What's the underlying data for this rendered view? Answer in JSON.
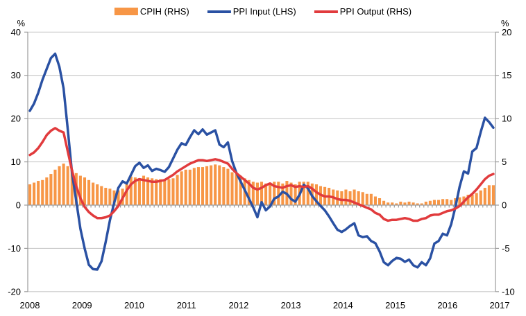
{
  "legend": {
    "items": [
      {
        "label": "CPIH (RHS)",
        "marker": "bar",
        "color": "#F79646"
      },
      {
        "label": "PPI Input (LHS)",
        "marker": "line",
        "color": "#2A51A3"
      },
      {
        "label": "PPI Output (RHS)",
        "marker": "line",
        "color": "#E13B3D"
      }
    ]
  },
  "chart_data": {
    "type": "combo-bar-line",
    "x_unit": "monthly",
    "x_start": "2008-01",
    "x_end": "2017-03",
    "grid": "horizontal-only",
    "legend_position": "top-center",
    "left_axis": {
      "label": "%",
      "ticks": [
        40,
        30,
        20,
        10,
        0,
        -10,
        -20
      ],
      "range": [
        -20,
        40
      ]
    },
    "right_axis": {
      "label": "%",
      "ticks": [
        20,
        15,
        10,
        5,
        0,
        -5,
        -10
      ],
      "range": [
        -10,
        20
      ]
    },
    "year_labels": [
      "2008",
      "2009",
      "2010",
      "2011",
      "2012",
      "2013",
      "2014",
      "2015",
      "2016",
      "2017"
    ],
    "colors": {
      "grid": "#C9C9C9",
      "axis": "#9B9B9B",
      "text": "#000000"
    },
    "series": [
      {
        "name": "CPIH (RHS)",
        "type": "bar",
        "axis": "right",
        "color": "#F79646",
        "values": [
          2.4,
          2.6,
          2.8,
          2.9,
          3.2,
          3.6,
          4.1,
          4.5,
          4.8,
          4.5,
          4.1,
          3.7,
          3.4,
          3.2,
          2.9,
          2.6,
          2.4,
          2.2,
          2.0,
          1.9,
          1.7,
          1.7,
          1.9,
          2.4,
          3.3,
          3.2,
          3.1,
          3.4,
          3.2,
          3.1,
          3.0,
          3.0,
          2.9,
          3.0,
          3.1,
          3.5,
          3.9,
          4.1,
          4.1,
          4.3,
          4.4,
          4.4,
          4.5,
          4.6,
          4.7,
          4.6,
          4.4,
          4.2,
          3.8,
          3.6,
          3.4,
          3.1,
          2.9,
          2.7,
          2.6,
          2.7,
          2.5,
          2.6,
          2.7,
          2.7,
          2.5,
          2.8,
          2.6,
          2.4,
          2.7,
          2.7,
          2.7,
          2.5,
          2.4,
          2.2,
          2.1,
          2.0,
          1.8,
          1.7,
          1.6,
          1.8,
          1.6,
          1.8,
          1.6,
          1.5,
          1.3,
          1.3,
          1.0,
          0.8,
          0.5,
          0.3,
          0.3,
          0.2,
          0.4,
          0.3,
          0.4,
          0.3,
          0.2,
          0.2,
          0.4,
          0.5,
          0.6,
          0.6,
          0.7,
          0.7,
          0.6,
          0.8,
          0.9,
          1.0,
          1.2,
          1.2,
          1.4,
          1.7,
          2.0,
          2.3,
          2.3
        ]
      },
      {
        "name": "PPI Input (LHS)",
        "type": "line",
        "axis": "left",
        "color": "#2A51A3",
        "values": [
          21.8,
          23.5,
          26.0,
          29.0,
          31.5,
          34.0,
          35.0,
          32.0,
          27.0,
          17.5,
          7.5,
          1.0,
          -5.5,
          -10.0,
          -13.8,
          -14.8,
          -14.9,
          -13.0,
          -8.5,
          -3.5,
          0.5,
          4.0,
          5.5,
          5.0,
          7.0,
          9.0,
          9.8,
          8.6,
          9.2,
          7.9,
          8.4,
          8.1,
          7.7,
          8.8,
          10.8,
          12.8,
          14.3,
          13.9,
          15.7,
          17.3,
          16.4,
          17.5,
          16.3,
          16.8,
          17.3,
          14.0,
          13.4,
          14.5,
          10.2,
          7.5,
          5.5,
          3.5,
          1.5,
          -0.5,
          -2.8,
          0.7,
          -1.2,
          -0.3,
          1.5,
          2.0,
          3.1,
          2.6,
          1.4,
          0.8,
          2.4,
          4.7,
          3.9,
          2.1,
          0.9,
          -0.2,
          -1.2,
          -2.6,
          -4.2,
          -5.7,
          -6.2,
          -5.6,
          -4.8,
          -4.2,
          -7.0,
          -7.4,
          -7.2,
          -8.3,
          -8.8,
          -10.7,
          -13.2,
          -13.9,
          -12.9,
          -12.2,
          -12.4,
          -13.1,
          -12.6,
          -13.9,
          -14.4,
          -13.2,
          -13.9,
          -12.3,
          -8.9,
          -8.3,
          -6.6,
          -7.0,
          -4.4,
          -0.4,
          4.3,
          7.8,
          7.3,
          12.4,
          13.2,
          16.9,
          20.2,
          19.2,
          17.9
        ]
      },
      {
        "name": "PPI Output (RHS)",
        "type": "line",
        "axis": "right",
        "color": "#E13B3D",
        "values": [
          5.8,
          6.1,
          6.6,
          7.3,
          8.1,
          8.6,
          8.9,
          8.6,
          8.4,
          6.2,
          4.0,
          2.2,
          0.8,
          -0.2,
          -0.8,
          -1.2,
          -1.5,
          -1.5,
          -1.4,
          -1.2,
          -0.7,
          -0.1,
          0.8,
          1.7,
          2.4,
          2.8,
          3.0,
          2.9,
          2.8,
          2.7,
          2.7,
          2.8,
          2.9,
          3.2,
          3.5,
          3.9,
          4.2,
          4.5,
          4.8,
          5.0,
          5.2,
          5.2,
          5.1,
          5.2,
          5.3,
          5.2,
          5.0,
          4.8,
          4.2,
          3.7,
          3.3,
          2.9,
          2.5,
          2.0,
          1.8,
          2.0,
          2.3,
          2.5,
          2.2,
          2.1,
          2.0,
          2.2,
          2.3,
          2.1,
          2.2,
          2.1,
          2.2,
          1.9,
          1.5,
          1.2,
          1.0,
          1.0,
          0.9,
          0.7,
          0.6,
          0.6,
          0.5,
          0.3,
          0.1,
          -0.1,
          -0.3,
          -0.5,
          -0.9,
          -1.1,
          -1.6,
          -1.8,
          -1.7,
          -1.7,
          -1.6,
          -1.5,
          -1.6,
          -1.8,
          -1.8,
          -1.6,
          -1.5,
          -1.2,
          -1.1,
          -1.1,
          -0.9,
          -0.7,
          -0.6,
          -0.4,
          -0.1,
          0.4,
          0.9,
          1.3,
          1.8,
          2.4,
          3.0,
          3.4,
          3.6
        ]
      }
    ]
  }
}
